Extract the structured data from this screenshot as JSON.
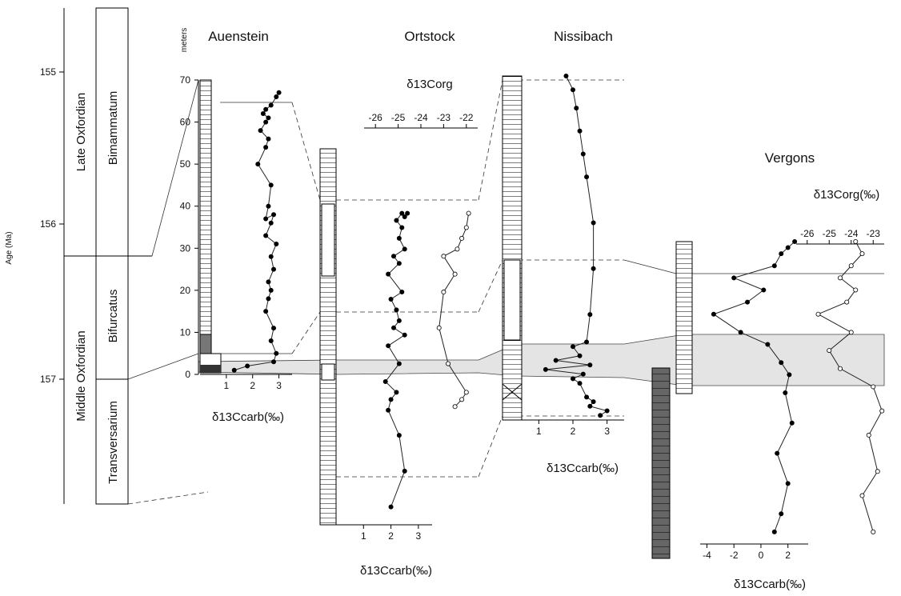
{
  "age_axis": {
    "label": "Age (Ma)",
    "ticks": [
      "155",
      "156",
      "157"
    ],
    "stages": [
      "Late Oxfordian",
      "Middle Oxfordian"
    ],
    "zones": [
      "Bimammatum",
      "Bifurcatus",
      "Transversarium"
    ]
  },
  "meters_label": "meters",
  "meter_ticks": [
    "0",
    "10",
    "20",
    "30",
    "40",
    "50",
    "60",
    "70"
  ],
  "axis_labels": {
    "d13c_carb": "δ13Ccarb(‰)",
    "d13c_org": "δ13Corg",
    "d13c_org_permil": "δ13Corg(‰)"
  },
  "chart_data": [
    {
      "type": "line",
      "title": "Auenstein",
      "xlabel": "δ13Ccarb(‰)",
      "ylabel": "meters",
      "xlim": [
        0,
        3.5
      ],
      "ylim": [
        0,
        70
      ],
      "x_ticks": [
        "1",
        "2",
        "3"
      ],
      "series": [
        {
          "name": "δ13Ccarb",
          "x": [
            1.3,
            1.8,
            2.8,
            2.9,
            2.7,
            2.8,
            2.5,
            2.6,
            2.7,
            2.6,
            2.8,
            2.7,
            2.9,
            2.5,
            2.7,
            2.8,
            2.5,
            2.6,
            2.7,
            2.2,
            2.5,
            2.6,
            2.3,
            2.5,
            2.6,
            2.4,
            2.5,
            2.7,
            2.9,
            3.0
          ],
          "y": [
            1,
            2,
            3,
            5,
            8,
            11,
            15,
            18,
            20,
            22,
            25,
            28,
            31,
            33,
            36,
            38,
            37,
            40,
            45,
            50,
            54,
            56,
            58,
            60,
            61,
            62,
            63,
            64,
            66,
            67
          ]
        }
      ]
    },
    {
      "type": "line",
      "title": "Ortstock",
      "xlabel": "δ13Ccarb(‰)",
      "ylabel": "meters",
      "xlim": [
        0,
        3.5
      ],
      "ylim": [
        -35,
        70
      ],
      "x_ticks": [
        "1",
        "2",
        "3"
      ],
      "secondary_x": {
        "label": "δ13Corg",
        "ticks": [
          "-26",
          "-25",
          "-24",
          "-23",
          "-22"
        ],
        "xlim": [
          -26.5,
          -21.5
        ]
      },
      "series": [
        {
          "name": "δ13Ccarb",
          "x": [
            2.0,
            2.5,
            2.3,
            1.9,
            2.0,
            2.2,
            1.8,
            2.3,
            1.9,
            2.5,
            2.1,
            2.3,
            2.2,
            2.0,
            2.4,
            1.9,
            2.3,
            2.1,
            2.5,
            2.3,
            2.4,
            2.2,
            2.4,
            2.5,
            2.6
          ],
          "y": [
            -30,
            -20,
            -10,
            -3,
            0,
            2,
            5,
            10,
            15,
            18,
            20,
            22,
            25,
            28,
            30,
            35,
            38,
            40,
            42,
            45,
            48,
            50,
            52,
            51,
            52
          ]
        },
        {
          "name": "δ13Corg",
          "x": [
            -22.5,
            -22.2,
            -22.0,
            -22.8,
            -23.2,
            -23.0,
            -22.5,
            -23.0,
            -22.4,
            -22.2,
            -22.0,
            -21.9
          ],
          "y": [
            -2,
            0,
            2,
            10,
            20,
            30,
            35,
            40,
            42,
            45,
            48,
            52
          ]
        }
      ]
    },
    {
      "type": "line",
      "title": "Nissibach",
      "xlabel": "δ13Ccarb(‰)",
      "ylabel": "meters",
      "xlim": [
        0.5,
        3.5
      ],
      "ylim": [
        -8,
        67
      ],
      "x_ticks": [
        "1",
        "2",
        "3"
      ],
      "series": [
        {
          "name": "δ13Ccarb",
          "x": [
            2.8,
            3.0,
            2.5,
            2.6,
            2.4,
            2.2,
            2.0,
            2.3,
            1.2,
            2.5,
            1.5,
            2.2,
            2.0,
            2.4,
            2.5,
            2.6,
            2.6,
            2.4,
            2.3,
            2.2,
            2.1,
            2.0,
            1.8
          ],
          "y": [
            -7,
            -6,
            -5,
            -4,
            -3,
            0,
            1,
            2,
            3,
            4,
            5,
            6,
            8,
            9,
            15,
            25,
            35,
            45,
            50,
            55,
            60,
            64,
            67
          ]
        }
      ]
    },
    {
      "type": "line",
      "title": "Vergons",
      "xlabel": "δ13Ccarb(‰)",
      "xlim": [
        -4.5,
        3.5
      ],
      "ylim": [
        -30,
        20
      ],
      "x_ticks": [
        "-4",
        "-2",
        "0",
        "2"
      ],
      "secondary_x": {
        "label": "δ13Corg(‰)",
        "ticks": [
          "-26",
          "-25",
          "-24",
          "-23"
        ],
        "xlim": [
          -26.5,
          -22.5
        ]
      },
      "series": [
        {
          "name": "δ13Ccarb",
          "x": [
            1.0,
            1.5,
            2.0,
            1.2,
            2.3,
            1.8,
            2.1,
            1.5,
            0.5,
            -1.5,
            -3.5,
            -1.0,
            0.2,
            -2.0,
            1.0,
            1.5,
            2.0,
            2.5
          ],
          "y": [
            -28,
            -25,
            -20,
            -15,
            -10,
            -5,
            -2,
            0,
            3,
            5,
            8,
            10,
            12,
            14,
            16,
            18,
            19,
            20
          ]
        },
        {
          "name": "δ13Corg",
          "x": [
            -23.0,
            -23.5,
            -22.8,
            -23.2,
            -22.6,
            -23.0,
            -24.5,
            -25.0,
            -24.0,
            -25.5,
            -24.2,
            -23.8,
            -24.5,
            -24.0,
            -23.5,
            -23.8
          ],
          "y": [
            -28,
            -22,
            -18,
            -12,
            -8,
            -4,
            -1,
            2,
            5,
            8,
            10,
            12,
            14,
            16,
            18,
            20
          ]
        }
      ]
    }
  ]
}
